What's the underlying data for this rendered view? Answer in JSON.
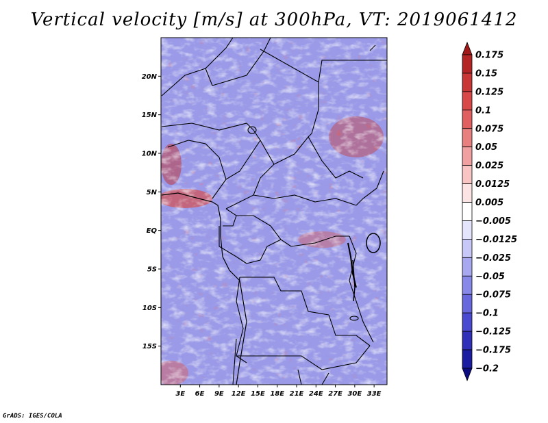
{
  "title": "Vertical velocity [m/s] at 300hPa, VT: 2019061412",
  "credit": "GrADS: IGES/COLA",
  "map": {
    "lon_range": [
      0,
      35
    ],
    "lat_range": [
      -20,
      25
    ],
    "lat_ticks": [
      {
        "label": "20N",
        "lat": 20
      },
      {
        "label": "15N",
        "lat": 15
      },
      {
        "label": "10N",
        "lat": 10
      },
      {
        "label": "5N",
        "lat": 5
      },
      {
        "label": "EQ",
        "lat": 0
      },
      {
        "label": "5S",
        "lat": -5
      },
      {
        "label": "10S",
        "lat": -10
      },
      {
        "label": "15S",
        "lat": -15
      }
    ],
    "lon_ticks": [
      {
        "label": "3E",
        "lon": 3
      },
      {
        "label": "6E",
        "lon": 6
      },
      {
        "label": "9E",
        "lon": 9
      },
      {
        "label": "12E",
        "lon": 12
      },
      {
        "label": "15E",
        "lon": 15
      },
      {
        "label": "18E",
        "lon": 18
      },
      {
        "label": "21E",
        "lon": 21
      },
      {
        "label": "24E",
        "lon": 24
      },
      {
        "label": "27E",
        "lon": 27
      },
      {
        "label": "30E",
        "lon": 30
      },
      {
        "label": "33E",
        "lon": 33
      }
    ]
  },
  "colorbar": {
    "labels": [
      "0.175",
      "0.15",
      "0.125",
      "0.1",
      "0.075",
      "0.05",
      "0.025",
      "0.0125",
      "0.005",
      "−0.005",
      "−0.0125",
      "−0.025",
      "−0.05",
      "−0.075",
      "−0.1",
      "−0.125",
      "−0.175",
      "−0.2"
    ],
    "colors": [
      "#a01818",
      "#b42424",
      "#c83636",
      "#d84848",
      "#e06060",
      "#e88080",
      "#f0a0a0",
      "#f8c4c4",
      "#fce4e4",
      "#ffffff",
      "#e4e4fc",
      "#c8c8f8",
      "#a8a8f0",
      "#8888e8",
      "#6868dc",
      "#4a4ad0",
      "#3030b8",
      "#1c1ca0",
      "#0c0c80"
    ]
  }
}
